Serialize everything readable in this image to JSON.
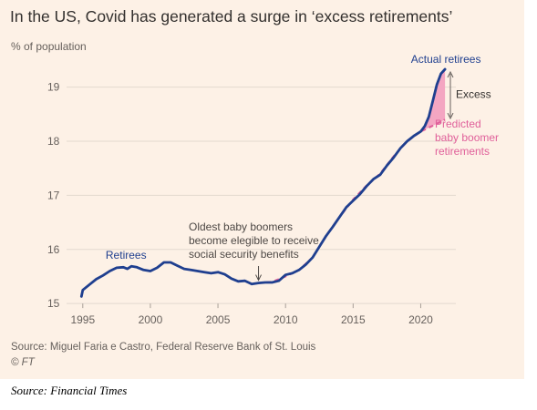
{
  "header": {
    "title": "In the US, Covid has generated a surge in ‘excess retirements’",
    "unit": "% of population"
  },
  "footer": {
    "source": "Source: Miguel Faria e Castro, Federal Reserve Bank of St. Louis",
    "credit": "© FT"
  },
  "caption": "Source: Financial Times",
  "colors": {
    "background": "#fdf1e6",
    "actual": "#1f3f8f",
    "predicted": "#e0609a",
    "excess_fill": "#f4a6c2",
    "grid": "#e3d9cf",
    "axis_text": "#66605c"
  },
  "chart_data": {
    "type": "line",
    "title": "In the US, Covid has generated a surge in ‘excess retirements’",
    "ylabel": "% of population",
    "xlim": [
      1993.8,
      2022.6
    ],
    "ylim": [
      14.8,
      19.6
    ],
    "grid": true,
    "x_ticks": [
      1995,
      2000,
      2005,
      2010,
      2015,
      2020
    ],
    "y_ticks": [
      15,
      16,
      17,
      18,
      19
    ],
    "series": [
      {
        "name": "Actual retirees",
        "style": "solid",
        "points": [
          [
            1994.9,
            15.13
          ],
          [
            1995.0,
            15.25
          ],
          [
            1995.5,
            15.35
          ],
          [
            1996.0,
            15.45
          ],
          [
            1996.5,
            15.52
          ],
          [
            1997.0,
            15.6
          ],
          [
            1997.5,
            15.66
          ],
          [
            1998.0,
            15.67
          ],
          [
            1998.3,
            15.64
          ],
          [
            1998.6,
            15.69
          ],
          [
            1999.0,
            15.67
          ],
          [
            1999.5,
            15.62
          ],
          [
            2000.0,
            15.6
          ],
          [
            2000.5,
            15.66
          ],
          [
            2001.0,
            15.76
          ],
          [
            2001.5,
            15.76
          ],
          [
            2002.0,
            15.7
          ],
          [
            2002.5,
            15.64
          ],
          [
            2003.0,
            15.62
          ],
          [
            2003.5,
            15.6
          ],
          [
            2004.0,
            15.58
          ],
          [
            2004.5,
            15.56
          ],
          [
            2005.0,
            15.58
          ],
          [
            2005.5,
            15.54
          ],
          [
            2006.0,
            15.46
          ],
          [
            2006.5,
            15.41
          ],
          [
            2007.0,
            15.42
          ],
          [
            2007.5,
            15.36
          ],
          [
            2008.0,
            15.38
          ],
          [
            2008.5,
            15.39
          ],
          [
            2009.0,
            15.39
          ],
          [
            2009.5,
            15.42
          ],
          [
            2010.0,
            15.53
          ],
          [
            2010.5,
            15.56
          ],
          [
            2011.0,
            15.62
          ],
          [
            2011.5,
            15.72
          ],
          [
            2012.0,
            15.85
          ],
          [
            2012.5,
            16.05
          ],
          [
            2013.0,
            16.25
          ],
          [
            2013.5,
            16.42
          ],
          [
            2014.0,
            16.6
          ],
          [
            2014.5,
            16.78
          ],
          [
            2015.0,
            16.9
          ],
          [
            2015.5,
            17.02
          ],
          [
            2016.0,
            17.17
          ],
          [
            2016.5,
            17.3
          ],
          [
            2017.0,
            17.38
          ],
          [
            2017.5,
            17.55
          ],
          [
            2018.0,
            17.7
          ],
          [
            2018.5,
            17.87
          ],
          [
            2019.0,
            18.0
          ],
          [
            2019.5,
            18.1
          ],
          [
            2020.0,
            18.18
          ],
          [
            2020.3,
            18.28
          ],
          [
            2020.6,
            18.45
          ],
          [
            2020.9,
            18.75
          ],
          [
            2021.2,
            19.05
          ],
          [
            2021.5,
            19.25
          ],
          [
            2021.8,
            19.33
          ]
        ]
      },
      {
        "name": "Predicted baby boomer retirements",
        "style": "dashed",
        "points": [
          [
            2008.0,
            15.38
          ],
          [
            2009.0,
            15.4
          ],
          [
            2010.0,
            15.5
          ],
          [
            2011.0,
            15.62
          ],
          [
            2012.0,
            15.85
          ],
          [
            2013.0,
            16.25
          ],
          [
            2014.0,
            16.6
          ],
          [
            2015.0,
            16.92
          ],
          [
            2016.0,
            17.18
          ],
          [
            2017.0,
            17.4
          ],
          [
            2018.0,
            17.72
          ],
          [
            2019.0,
            18.0
          ],
          [
            2020.0,
            18.18
          ],
          [
            2021.0,
            18.3
          ],
          [
            2021.8,
            18.4
          ]
        ]
      }
    ],
    "annotations": {
      "retirees_label": "Retirees",
      "actual_label": "Actual retirees",
      "predicted_label": [
        "Predicted",
        "baby boomer",
        "retirements"
      ],
      "excess_label": "Excess",
      "boomers_note": [
        "Oldest baby boomers",
        "become elegible to receive",
        "social security benefits"
      ],
      "boomers_year": 2008
    }
  }
}
